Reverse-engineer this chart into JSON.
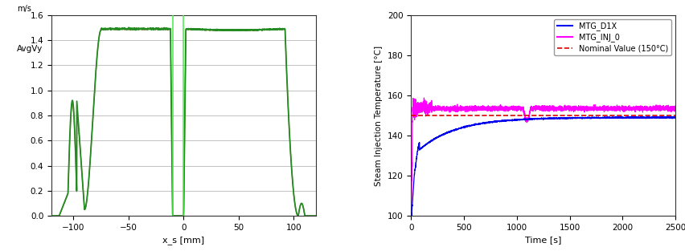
{
  "left_chart": {
    "xlabel": "x_s [mm]",
    "ylabel_line1": "m/s",
    "ylabel_line2": "AvgVy",
    "xlim": [
      -120,
      120
    ],
    "ylim": [
      0,
      1.6
    ],
    "yticks": [
      0,
      0.2,
      0.4,
      0.6,
      0.8,
      1.0,
      1.2,
      1.4,
      1.6
    ],
    "xticks": [
      -100,
      -50,
      0,
      50,
      100
    ],
    "line_color_green": "#228B22",
    "line_color_brown": "#8B6010",
    "vline_color": "#44EE44",
    "vline_x1": -10,
    "vline_x2": 0
  },
  "right_chart": {
    "xlabel": "Time [s]",
    "ylabel": "Steam Injection Temperature [°C]",
    "xlim": [
      0,
      2500
    ],
    "ylim": [
      100,
      200
    ],
    "yticks": [
      100,
      120,
      140,
      160,
      180,
      200
    ],
    "xticks": [
      0,
      500,
      1000,
      1500,
      2000,
      2500
    ],
    "blue_label": "MTG_D1X",
    "magenta_label": "MTG_INJ_0",
    "nominal_label": "Nominal Value (150°C)",
    "blue_color": "#0000EE",
    "magenta_color": "#FF00FF",
    "nominal_color": "#DD0000",
    "nominal_value": 150
  }
}
